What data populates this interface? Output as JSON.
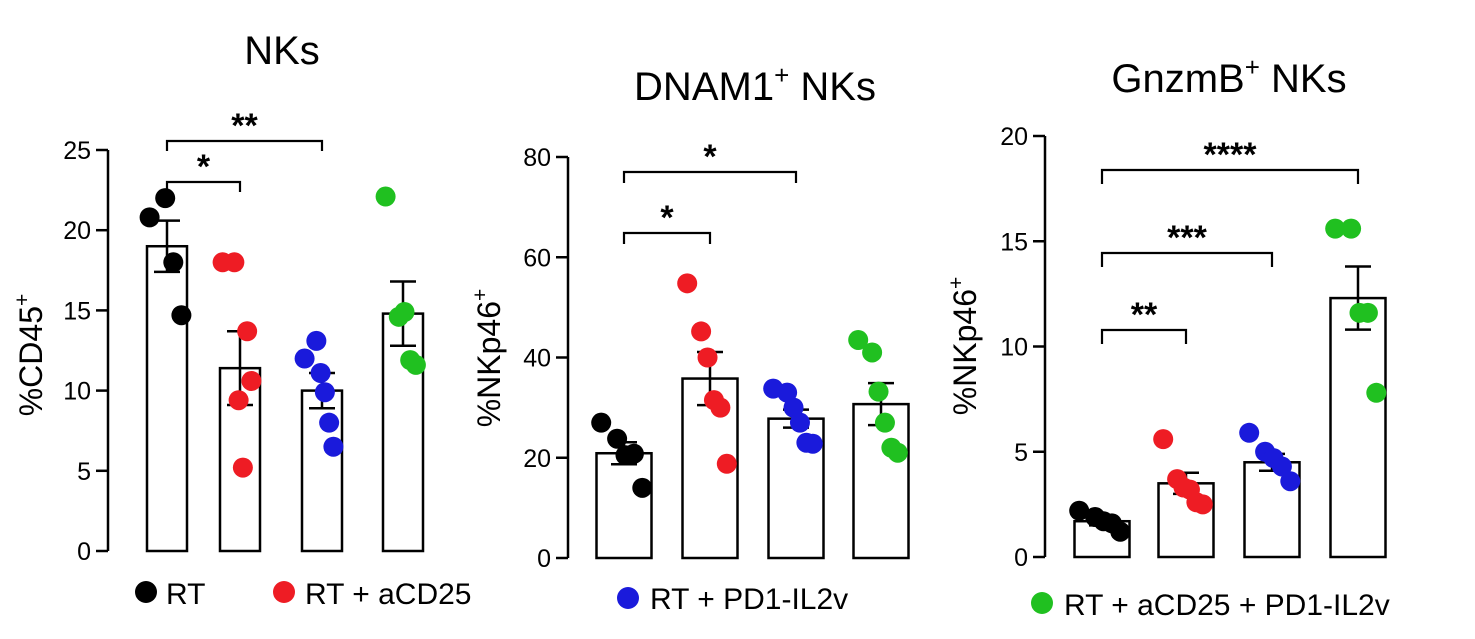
{
  "series_names": [
    "RT",
    "RT + aCD25",
    "RT + PD1-IL2v",
    "RT + aCD25 + PD1-IL2v"
  ],
  "colors": {
    "RT": "#000000",
    "RT + aCD25": "#ee1c24",
    "RT + PD1-IL2v": "#1a1adb",
    "RT + aCD25 + PD1-IL2v": "#20c020"
  },
  "chart_data": [
    {
      "type": "bar",
      "title": "NKs",
      "ylabel": "%CD45",
      "ylabel_sup": "+",
      "ylim": [
        0,
        25
      ],
      "yticks": [
        0,
        5,
        10,
        15,
        20,
        25
      ],
      "categories": [
        "RT",
        "RT + aCD25",
        "RT + PD1-IL2v",
        "RT + aCD25 + PD1-IL2v"
      ],
      "values": [
        19.0,
        11.4,
        10.0,
        14.8
      ],
      "sem": [
        1.6,
        2.3,
        1.1,
        2.0
      ],
      "points": [
        [
          20.8,
          22.0,
          18.0,
          14.7
        ],
        [
          18.0,
          18.0,
          9.4,
          5.2,
          13.7,
          10.6
        ],
        [
          12.0,
          13.1,
          11.1,
          9.9,
          8.0,
          6.5
        ],
        [
          22.1,
          14.6,
          14.9,
          11.9,
          11.6
        ]
      ],
      "significance": [
        {
          "from": 0,
          "to": 1,
          "label": "*"
        },
        {
          "from": 0,
          "to": 2,
          "label": "**"
        }
      ]
    },
    {
      "type": "bar",
      "title": "DNAM1",
      "title_sup": "+",
      "title_suffix": " NKs",
      "ylabel": "%NKp46",
      "ylabel_sup": "+",
      "ylim": [
        0,
        80
      ],
      "yticks": [
        0,
        20,
        40,
        60,
        80
      ],
      "categories": [
        "RT",
        "RT + aCD25",
        "RT + PD1-IL2v",
        "RT + aCD25 + PD1-IL2v"
      ],
      "values": [
        20.9,
        35.8,
        27.8,
        30.7
      ],
      "sem": [
        2.2,
        5.3,
        1.8,
        4.2
      ],
      "points": [
        [
          27.0,
          23.8,
          20.5,
          20.8,
          14.0
        ],
        [
          54.8,
          45.2,
          40.0,
          31.5,
          30.0,
          18.8
        ],
        [
          33.8,
          33.0,
          30.0,
          27.0,
          23.0,
          22.8
        ],
        [
          43.5,
          41.0,
          33.2,
          27.0,
          22.0,
          21.0
        ]
      ],
      "significance": [
        {
          "from": 0,
          "to": 1,
          "label": "*"
        },
        {
          "from": 0,
          "to": 2,
          "label": "*"
        }
      ]
    },
    {
      "type": "bar",
      "title": "GnzmB",
      "title_sup": "+",
      "title_suffix": " NKs",
      "ylabel": "%NKp46",
      "ylabel_sup": "+",
      "ylim": [
        0,
        20
      ],
      "yticks": [
        0,
        5,
        10,
        15,
        20
      ],
      "categories": [
        "RT",
        "RT + aCD25",
        "RT + PD1-IL2v",
        "RT + aCD25 + PD1-IL2v"
      ],
      "values": [
        1.7,
        3.5,
        4.5,
        12.3
      ],
      "sem": [
        0.2,
        0.5,
        0.4,
        1.5
      ],
      "points": [
        [
          2.2,
          1.9,
          1.7,
          1.6,
          1.2
        ],
        [
          5.6,
          3.7,
          3.3,
          3.2,
          2.6,
          2.5
        ],
        [
          5.9,
          5.0,
          4.7,
          4.3,
          3.6
        ],
        [
          15.6,
          15.6,
          11.6,
          11.6,
          7.8
        ]
      ],
      "significance": [
        {
          "from": 0,
          "to": 1,
          "label": "**"
        },
        {
          "from": 0,
          "to": 2,
          "label": "***"
        },
        {
          "from": 0,
          "to": 3,
          "label": "****"
        }
      ]
    }
  ]
}
